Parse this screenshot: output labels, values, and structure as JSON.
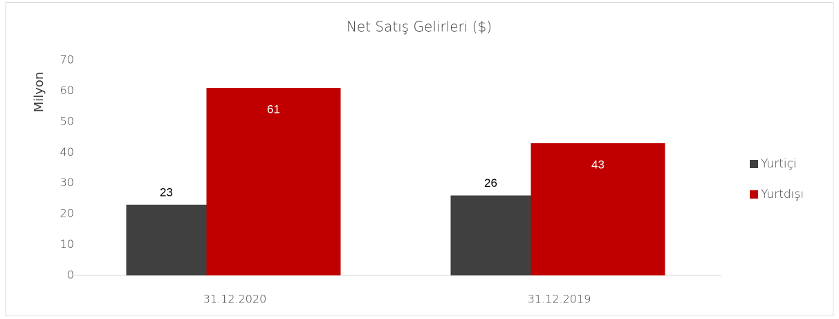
{
  "chart_data": {
    "type": "bar",
    "title": "Net Satış Gelirleri ($)",
    "y_label": "Milyon",
    "categories": [
      "31.12.2020",
      "31.12.2019"
    ],
    "series": [
      {
        "name": "Yurtiçi",
        "color": "#404040",
        "values": [
          23,
          26
        ]
      },
      {
        "name": "Yurtdışı",
        "color": "#c00000",
        "values": [
          61,
          43
        ]
      }
    ],
    "ylim": [
      0,
      70
    ],
    "yticks": [
      0,
      10,
      20,
      30,
      40,
      50,
      60,
      70
    ],
    "grid": false,
    "legend": "right"
  }
}
